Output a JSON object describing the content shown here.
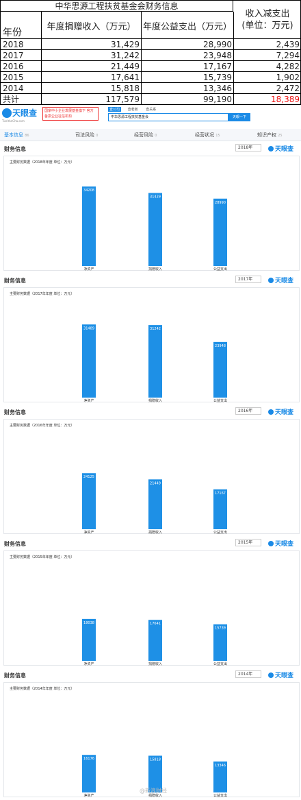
{
  "summary": {
    "title": "中华思源工程扶贫基金会财务信息",
    "headers": {
      "year": "年份",
      "income": "年度捐赠收入（万元）",
      "spending": "年度公益支出（万元）",
      "diff_line1": "收入减支出",
      "diff_line2": "(单位：万元)"
    },
    "rows": [
      {
        "year": "2018",
        "income": "31,429",
        "spending": "28,990",
        "diff": "2,439"
      },
      {
        "year": "2017",
        "income": "31,242",
        "spending": "23,948",
        "diff": "7,294"
      },
      {
        "year": "2016",
        "income": "21,449",
        "spending": "17,167",
        "diff": "4,282"
      },
      {
        "year": "2015",
        "income": "17,641",
        "spending": "15,739",
        "diff": "1,902"
      },
      {
        "year": "2014",
        "income": "15,818",
        "spending": "13,346",
        "diff": "2,472"
      }
    ],
    "total": {
      "label": "共计",
      "income": "117,579",
      "spending": "99,190",
      "diff": "18,389"
    },
    "colors": {
      "total_diff": "#ee1111"
    }
  },
  "header": {
    "logo_name": "天眼查",
    "logo_url": "TianYanCha.com",
    "promo": "国家中小企业发展基金旗下 官方备案企业征信机构",
    "search_tabs": [
      "查公司",
      "查老板",
      "查关系"
    ],
    "search_value": "中华思源工程扶贫基金会",
    "search_button": "天眼一下"
  },
  "nav": {
    "tabs": [
      {
        "label": "基本信息",
        "count": "86"
      },
      {
        "label": "司法风险",
        "count": "0"
      },
      {
        "label": "经营风险",
        "count": "0"
      },
      {
        "label": "经营状况",
        "count": "15"
      },
      {
        "label": "知识产权",
        "count": "25"
      }
    ]
  },
  "panels": [
    {
      "title": "财务信息",
      "year_select": "2018年",
      "logo": "天眼查",
      "chart_data": {
        "type": "bar",
        "title": "主要财务数据（2018年年度 单位：万元）",
        "categories": [
          "净资产",
          "捐赠收入",
          "公益支出"
        ],
        "values": [
          34208,
          31429,
          28990
        ]
      }
    },
    {
      "title": "财务信息",
      "year_select": "2017年",
      "logo": "天眼查",
      "chart_data": {
        "type": "bar",
        "title": "主要财务数据（2017年年度 单位：万元）",
        "categories": [
          "净资产",
          "捐赠收入",
          "公益支出"
        ],
        "values": [
          31489,
          31242,
          23948
        ]
      }
    },
    {
      "title": "财务信息",
      "year_select": "2016年",
      "logo": "天眼查",
      "chart_data": {
        "type": "bar",
        "title": "主要财务数据（2016年年度 单位：万元）",
        "categories": [
          "净资产",
          "捐赠收入",
          "公益支出"
        ],
        "values": [
          24125,
          21449,
          17167
        ]
      }
    },
    {
      "title": "财务信息",
      "year_select": "2015年",
      "logo": "天眼查",
      "chart_data": {
        "type": "bar",
        "title": "主要财务数据（2015年年度 单位：万元）",
        "categories": [
          "净资产",
          "捐赠收入",
          "公益支出"
        ],
        "values": [
          18038,
          17641,
          15739
        ]
      }
    },
    {
      "title": "财务信息",
      "year_select": "2014年",
      "logo": "天眼查",
      "chart_data": {
        "type": "bar",
        "title": "主要财务数据（2014年年度 单位：万元）",
        "categories": [
          "净资产",
          "捐赠收入",
          "公益支出"
        ],
        "values": [
          16176,
          15818,
          13346
        ]
      }
    }
  ],
  "colors": {
    "accent": "#1a8ae6",
    "bar": "#1e90e6"
  },
  "watermark": "@新浪财经"
}
